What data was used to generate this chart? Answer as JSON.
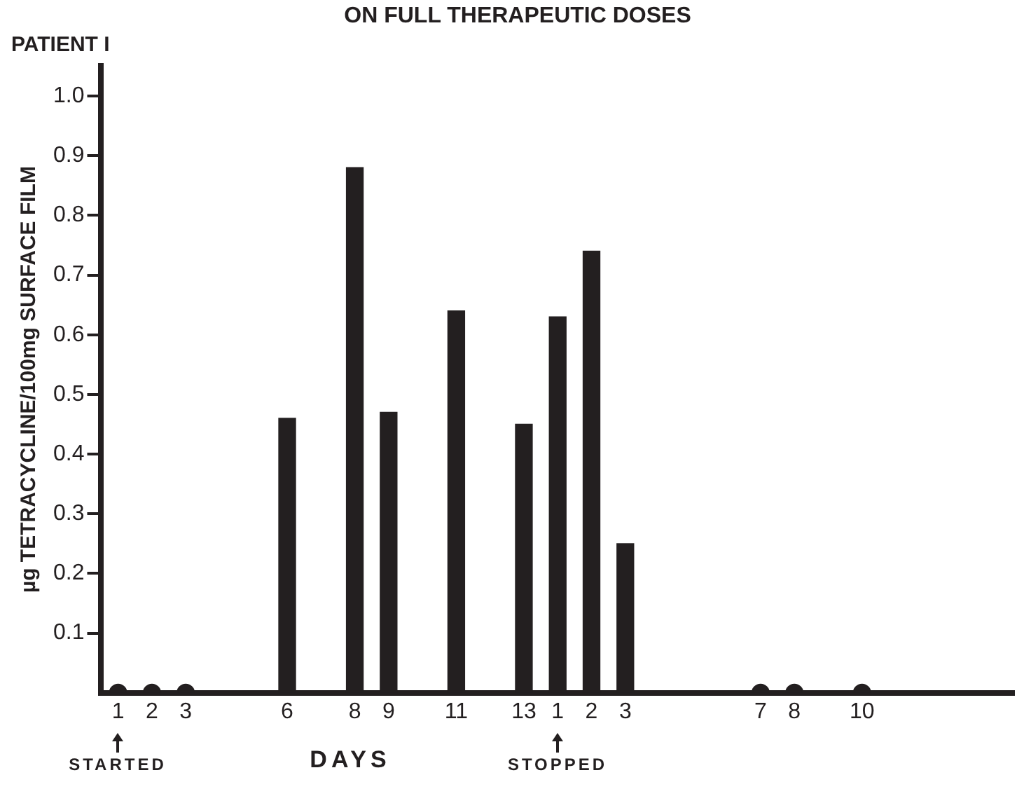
{
  "chart_data": {
    "type": "bar",
    "title": "ON FULL THERAPEUTIC DOSES",
    "subtitle": "PATIENT I",
    "xlabel": "DAYS",
    "ylabel": "µg TETRACYCLINE/100mg SURFACE FILM",
    "categories": [
      "1",
      "2",
      "3",
      null,
      null,
      "6",
      null,
      "8",
      "9",
      null,
      "11",
      null,
      "13",
      "1",
      "2",
      "3",
      null,
      null,
      null,
      "7",
      "8",
      null,
      "10",
      null,
      null,
      null,
      null
    ],
    "series": [
      {
        "color": "#231f20",
        "values": [
          null,
          null,
          null,
          null,
          null,
          0.46,
          null,
          0.88,
          0.47,
          null,
          0.64,
          null,
          0.45,
          0.63,
          0.74,
          0.25,
          null,
          null,
          null,
          null,
          null,
          null,
          null,
          null,
          null,
          null,
          null
        ]
      },
      {
        "type": "scatter",
        "color": "#231f20",
        "values": [
          0,
          0,
          0,
          null,
          null,
          null,
          null,
          null,
          null,
          null,
          null,
          null,
          null,
          null,
          null,
          null,
          null,
          null,
          null,
          0,
          0,
          null,
          0,
          null,
          null,
          null,
          null
        ]
      }
    ],
    "marker": "circle",
    "ylim": [
      0,
      1.05
    ],
    "yticks": [
      0.1,
      0.2,
      0.3,
      0.4,
      0.5,
      0.6,
      0.7,
      0.8,
      0.9,
      {
        "value": 1,
        "label": "1.0"
      }
    ],
    "grid": false,
    "annotations": [
      "STARTED",
      "STOPPED"
    ]
  }
}
